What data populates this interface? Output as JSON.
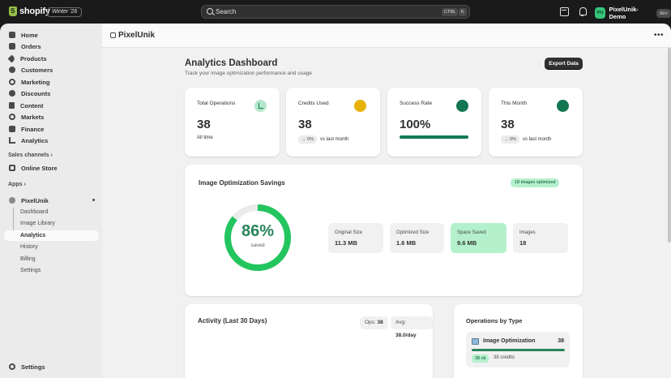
{
  "topbar": {
    "brand": "shopify",
    "edition": "Winter '26",
    "search_placeholder": "Search",
    "shortcut_key1": "CTRL",
    "shortcut_key2": "K",
    "user_initials": "PU",
    "user_name": "PixelUnik-Demo",
    "user_tag": "dev"
  },
  "sidebar": {
    "items": [
      {
        "label": "Home",
        "icon": "home-icon"
      },
      {
        "label": "Orders",
        "icon": "orders-icon"
      },
      {
        "label": "Products",
        "icon": "tag-icon"
      },
      {
        "label": "Customers",
        "icon": "person-icon"
      },
      {
        "label": "Marketing",
        "icon": "target-icon"
      },
      {
        "label": "Discounts",
        "icon": "discount-icon"
      },
      {
        "label": "Content",
        "icon": "content-icon"
      },
      {
        "label": "Markets",
        "icon": "globe-icon"
      },
      {
        "label": "Finance",
        "icon": "bank-icon"
      },
      {
        "label": "Analytics",
        "icon": "chart-icon"
      }
    ],
    "sales_channels_label": "Sales channels",
    "online_store_label": "Online Store",
    "apps_label": "Apps",
    "app_name": "PixelUnik",
    "app_subitems": [
      "Dashboard",
      "Image Library",
      "Analytics",
      "History",
      "Billing",
      "Settings"
    ],
    "settings_label": "Settings"
  },
  "appbar": {
    "name": "PixelUnik",
    "more": "•••"
  },
  "page": {
    "title": "Analytics Dashboard",
    "subtitle": "Track your image optimization performance and usage",
    "export_label": "Export Data"
  },
  "stats": [
    {
      "label": "Total Operations",
      "value": "38",
      "foot": "All time",
      "dot_color": "#b4e7cd"
    },
    {
      "label": "Credits Used",
      "value": "38",
      "chip": "→ 0%",
      "foot": "vs last month",
      "dot_color": "#e8b10a"
    },
    {
      "label": "Success Rate",
      "value": "100%",
      "progress": 1.0,
      "dot_color": "#137752"
    },
    {
      "label": "This Month",
      "value": "38",
      "chip": "→ 0%",
      "foot": "vs last month",
      "dot_color": "#137752"
    }
  ],
  "savings": {
    "title": "Image Optimization Savings",
    "badge": "18 images optimized",
    "percent": 86,
    "percent_text": "86%",
    "percent_label": "saved",
    "metrics": [
      {
        "label": "Original Size",
        "value": "11.3 MB"
      },
      {
        "label": "Optimized Size",
        "value": "1.6 MB"
      },
      {
        "label": "Space Saved",
        "value": "9.6 MB"
      },
      {
        "label": "Images",
        "value": "18"
      }
    ]
  },
  "activity": {
    "title": "Activity (Last 30 Days)",
    "ops_label": "Ops:",
    "ops_value": "38",
    "avg_label": "Avg:",
    "avg_value": "38.0/day"
  },
  "ops_by_type": {
    "title": "Operations by Type",
    "name": "Image Optimization",
    "count": "38",
    "share": 1.0,
    "chip": "38 ok",
    "credits": "38 credits"
  },
  "colors": {
    "accent_green": "#29845a",
    "success_bg": "#b4f0cc",
    "dark": "#303030"
  }
}
